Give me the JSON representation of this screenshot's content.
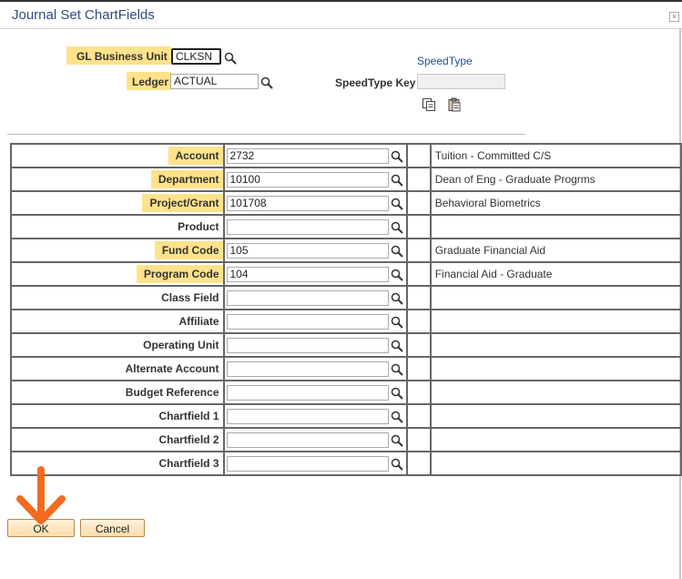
{
  "dialog": {
    "title": "Journal Set ChartFields",
    "close": "×"
  },
  "header": {
    "bu_label": "GL Business Unit",
    "bu_value": "CLKSN",
    "ledger_label": "Ledger",
    "ledger_value": "ACTUAL",
    "speedtype_link": "SpeedType",
    "speedtype_key_label": "SpeedType Key",
    "speedtype_key_value": ""
  },
  "rows": [
    {
      "label": "Account",
      "value": "2732",
      "desc": "Tuition - Committed C/S",
      "highlight": true
    },
    {
      "label": "Department",
      "value": "10100",
      "desc": "Dean of Eng - Graduate Progrms",
      "highlight": true
    },
    {
      "label": "Project/Grant",
      "value": "101708",
      "desc": "Behavioral Biometrics",
      "highlight": true
    },
    {
      "label": "Product",
      "value": "",
      "desc": "",
      "highlight": false
    },
    {
      "label": "Fund Code",
      "value": "105",
      "desc": "Graduate Financial Aid",
      "highlight": true
    },
    {
      "label": "Program Code",
      "value": "104",
      "desc": "Financial Aid - Graduate",
      "highlight": true
    },
    {
      "label": "Class Field",
      "value": "",
      "desc": "",
      "highlight": false
    },
    {
      "label": "Affiliate",
      "value": "",
      "desc": "",
      "highlight": false
    },
    {
      "label": "Operating Unit",
      "value": "",
      "desc": "",
      "highlight": false
    },
    {
      "label": "Alternate Account",
      "value": "",
      "desc": "",
      "highlight": false
    },
    {
      "label": "Budget Reference",
      "value": "",
      "desc": "",
      "highlight": false
    },
    {
      "label": "Chartfield 1",
      "value": "",
      "desc": "",
      "highlight": false
    },
    {
      "label": "Chartfield 2",
      "value": "",
      "desc": "",
      "highlight": false
    },
    {
      "label": "Chartfield 3",
      "value": "",
      "desc": "",
      "highlight": false
    }
  ],
  "buttons": {
    "ok": "OK",
    "cancel": "Cancel"
  },
  "colors": {
    "highlight": "#ffe28a",
    "arrow": "#f26b21",
    "title": "#2f4d7c"
  }
}
